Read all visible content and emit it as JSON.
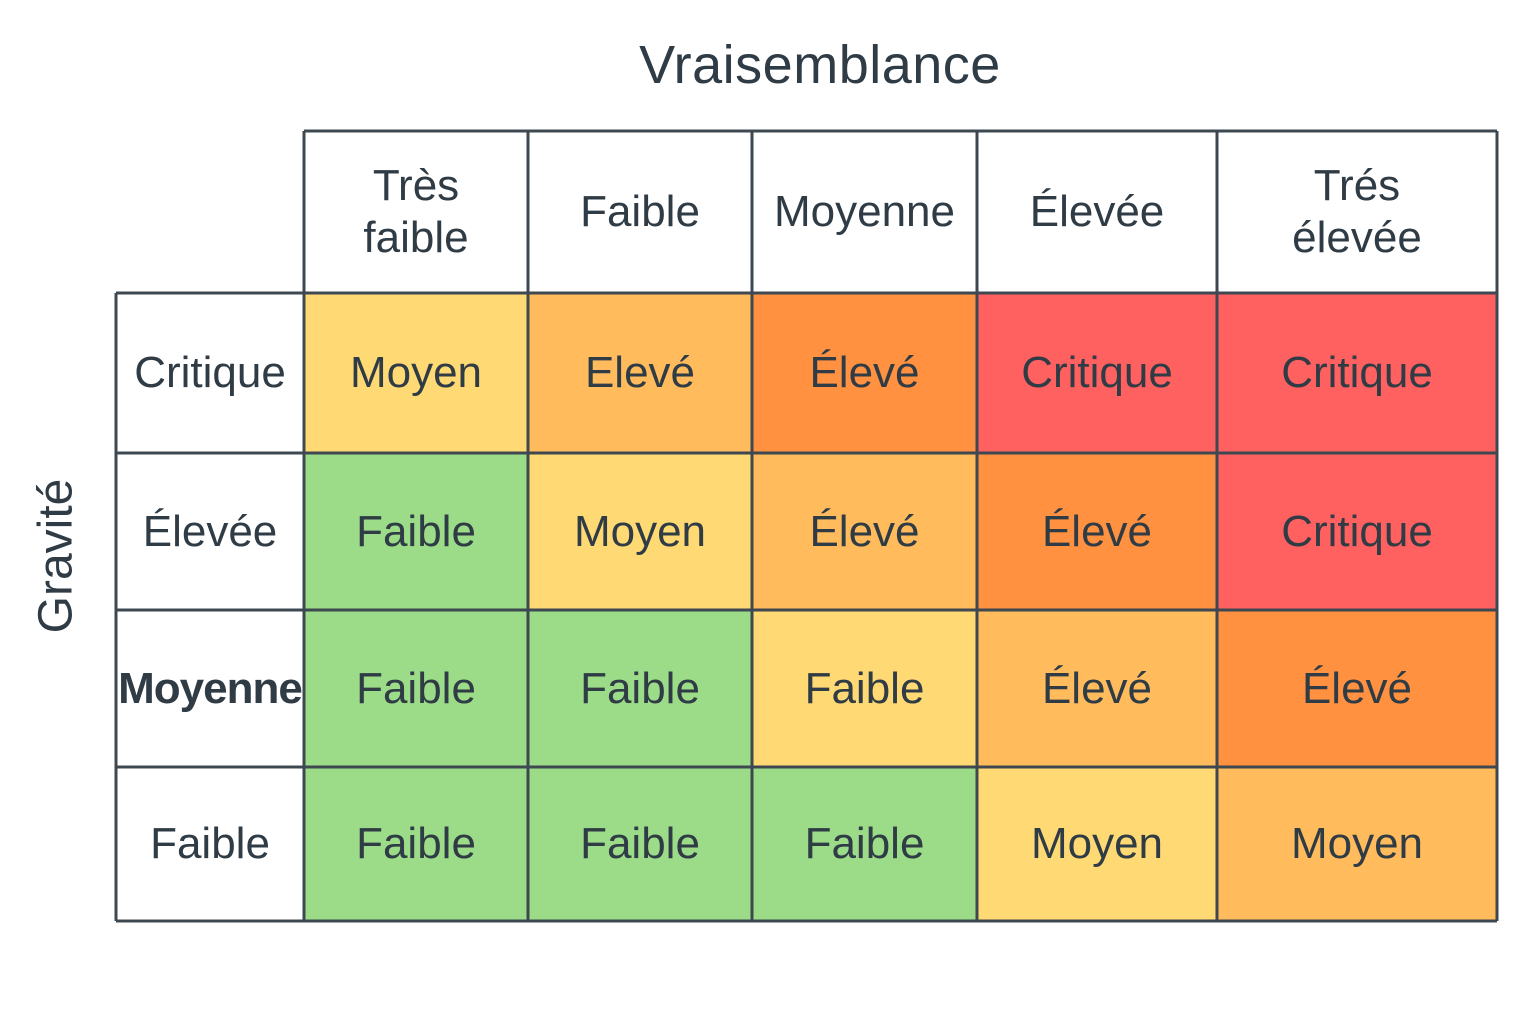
{
  "title": "Vraisemblance",
  "y_axis_label": "Gravité",
  "columns": [
    "Très\nfaible",
    "Faible",
    "Moyenne",
    "Élevée",
    "Trés\nélevée"
  ],
  "rows": [
    {
      "label": "Critique",
      "cells": [
        {
          "text": "Moyen",
          "color": "#ffd974"
        },
        {
          "text": "Elevé",
          "color": "#ffbb5c"
        },
        {
          "text": "Élevé",
          "color": "#ff9140"
        },
        {
          "text": "Critique",
          "color": "#ff6060"
        },
        {
          "text": "Critique",
          "color": "#ff6060"
        }
      ]
    },
    {
      "label": "Élevée",
      "cells": [
        {
          "text": "Faible",
          "color": "#9cdc88"
        },
        {
          "text": "Moyen",
          "color": "#ffd974"
        },
        {
          "text": "Élevé",
          "color": "#ffbb5c"
        },
        {
          "text": "Élevé",
          "color": "#ff9140"
        },
        {
          "text": "Critique",
          "color": "#ff6060"
        }
      ]
    },
    {
      "label": "Moyenne",
      "bold": true,
      "cells": [
        {
          "text": "Faible",
          "color": "#9cdc88"
        },
        {
          "text": "Faible",
          "color": "#9cdc88"
        },
        {
          "text": "Faible",
          "color": "#ffd974"
        },
        {
          "text": "Élevé",
          "color": "#ffbb5c"
        },
        {
          "text": "Élevé",
          "color": "#ff9140"
        }
      ]
    },
    {
      "label": "Faible",
      "cells": [
        {
          "text": "Faible",
          "color": "#9cdc88"
        },
        {
          "text": "Faible",
          "color": "#9cdc88"
        },
        {
          "text": "Faible",
          "color": "#9cdc88"
        },
        {
          "text": "Moyen",
          "color": "#ffd974"
        },
        {
          "text": "Moyen",
          "color": "#ffbb5c"
        }
      ]
    }
  ]
}
